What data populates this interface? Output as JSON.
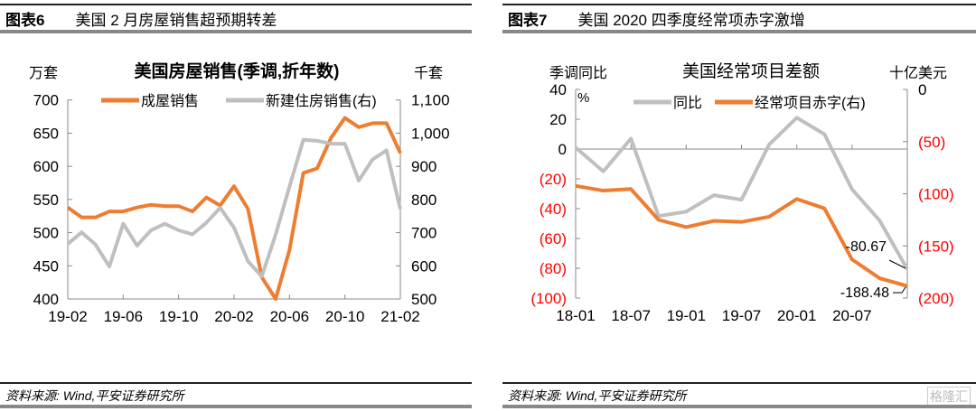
{
  "left": {
    "header_num": "图表6",
    "header_title": "美国 2 月房屋销售超预期转差",
    "source": "资料来源: Wind,平安证券研究所"
  },
  "right": {
    "header_num": "图表7",
    "header_title": "美国 2020 四季度经常项赤字激增",
    "source": "资料来源: Wind,平安证券研究所",
    "watermark": "格隆汇"
  },
  "chart_data": [
    {
      "type": "line",
      "title": "美国房屋销售(季调,折年数)",
      "ylabel": "万套",
      "y2label": "千套",
      "ylim": [
        400,
        700
      ],
      "y2lim": [
        500,
        1100
      ],
      "yticks": [
        "700",
        "650",
        "600",
        "550",
        "500",
        "450",
        "400"
      ],
      "y2ticks": [
        "1,100",
        "1,000",
        "900",
        "800",
        "700",
        "600",
        "500"
      ],
      "xtick_labels": [
        "19-02",
        "19-06",
        "19-10",
        "20-02",
        "20-06",
        "20-10",
        "21-02"
      ],
      "x": [
        "19-02",
        "19-03",
        "19-04",
        "19-05",
        "19-06",
        "19-07",
        "19-08",
        "19-09",
        "19-10",
        "19-11",
        "19-12",
        "20-01",
        "20-02",
        "20-03",
        "20-04",
        "20-05",
        "20-06",
        "20-07",
        "20-08",
        "20-09",
        "20-10",
        "20-11",
        "20-12",
        "21-01",
        "21-02"
      ],
      "legend_position": "top",
      "series": [
        {
          "name": "成屋销售",
          "axis": "left",
          "color": "#ED7D31",
          "values": [
            538,
            523,
            523,
            532,
            532,
            538,
            542,
            540,
            540,
            532,
            553,
            541,
            570,
            536,
            433,
            400,
            474,
            590,
            597,
            643,
            673,
            659,
            665,
            665,
            620
          ]
        },
        {
          "name": "新建住房销售(右)",
          "axis": "right",
          "color": "#BFBFBF",
          "values": [
            666,
            701,
            664,
            598,
            727,
            661,
            707,
            727,
            707,
            695,
            730,
            775,
            715,
            614,
            568,
            694,
            839,
            980,
            977,
            968,
            968,
            857,
            921,
            948,
            771
          ]
        }
      ]
    },
    {
      "type": "line",
      "title": "美国经常项目差额",
      "ylabel": "季调同比",
      "ylabel_unit": "%",
      "y2label": "十亿美元",
      "ylim": [
        -100,
        40
      ],
      "y2lim": [
        -200,
        0
      ],
      "yticks": [
        "40",
        "20",
        "0",
        "(20)",
        "(40)",
        "(60)",
        "(80)",
        "(100)"
      ],
      "y2ticks": [
        "0",
        "(50)",
        "(100)",
        "(150)",
        "(200)"
      ],
      "xtick_labels": [
        "18-01",
        "18-07",
        "19-01",
        "19-07",
        "20-01",
        "20-07"
      ],
      "negative_tick_color": "#FF0000",
      "legend_position": "top",
      "series": [
        {
          "name": "同比",
          "axis": "left",
          "color": "#BFBFBF",
          "values": [
            1,
            -15,
            7,
            -45,
            -42,
            -31,
            -34,
            3,
            21,
            10,
            -27,
            -48,
            -80.67
          ]
        },
        {
          "name": "经常项目赤字(右)",
          "axis": "right",
          "color": "#ED7D31",
          "values": [
            -92.5,
            -97,
            -95.5,
            -125,
            -132,
            -126,
            -127,
            -122,
            -105,
            -114,
            -163,
            -181,
            -188.48
          ]
        }
      ],
      "annotations": [
        "-80.67",
        "-188.48"
      ]
    }
  ]
}
